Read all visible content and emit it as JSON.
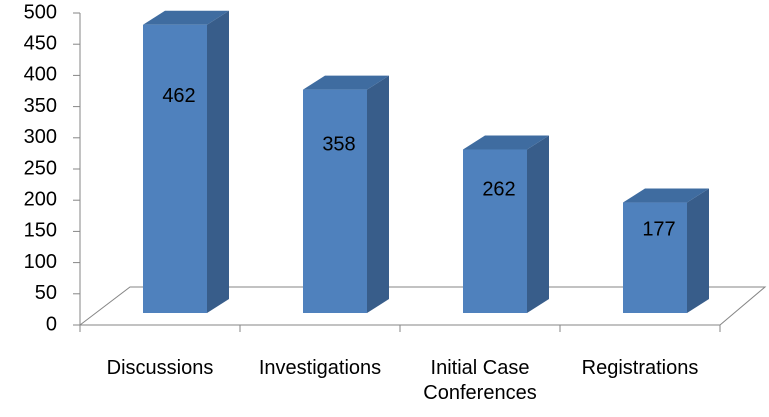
{
  "chart_data": {
    "type": "bar3d",
    "categories": [
      "Discussions",
      "Investigations",
      "Initial Case Conferences",
      "Registrations"
    ],
    "values": [
      462,
      358,
      262,
      177
    ],
    "color": "#4f81bd",
    "ylim": [
      0,
      500
    ],
    "yticks": [
      0,
      50,
      100,
      150,
      200,
      250,
      300,
      350,
      400,
      450,
      500
    ]
  }
}
